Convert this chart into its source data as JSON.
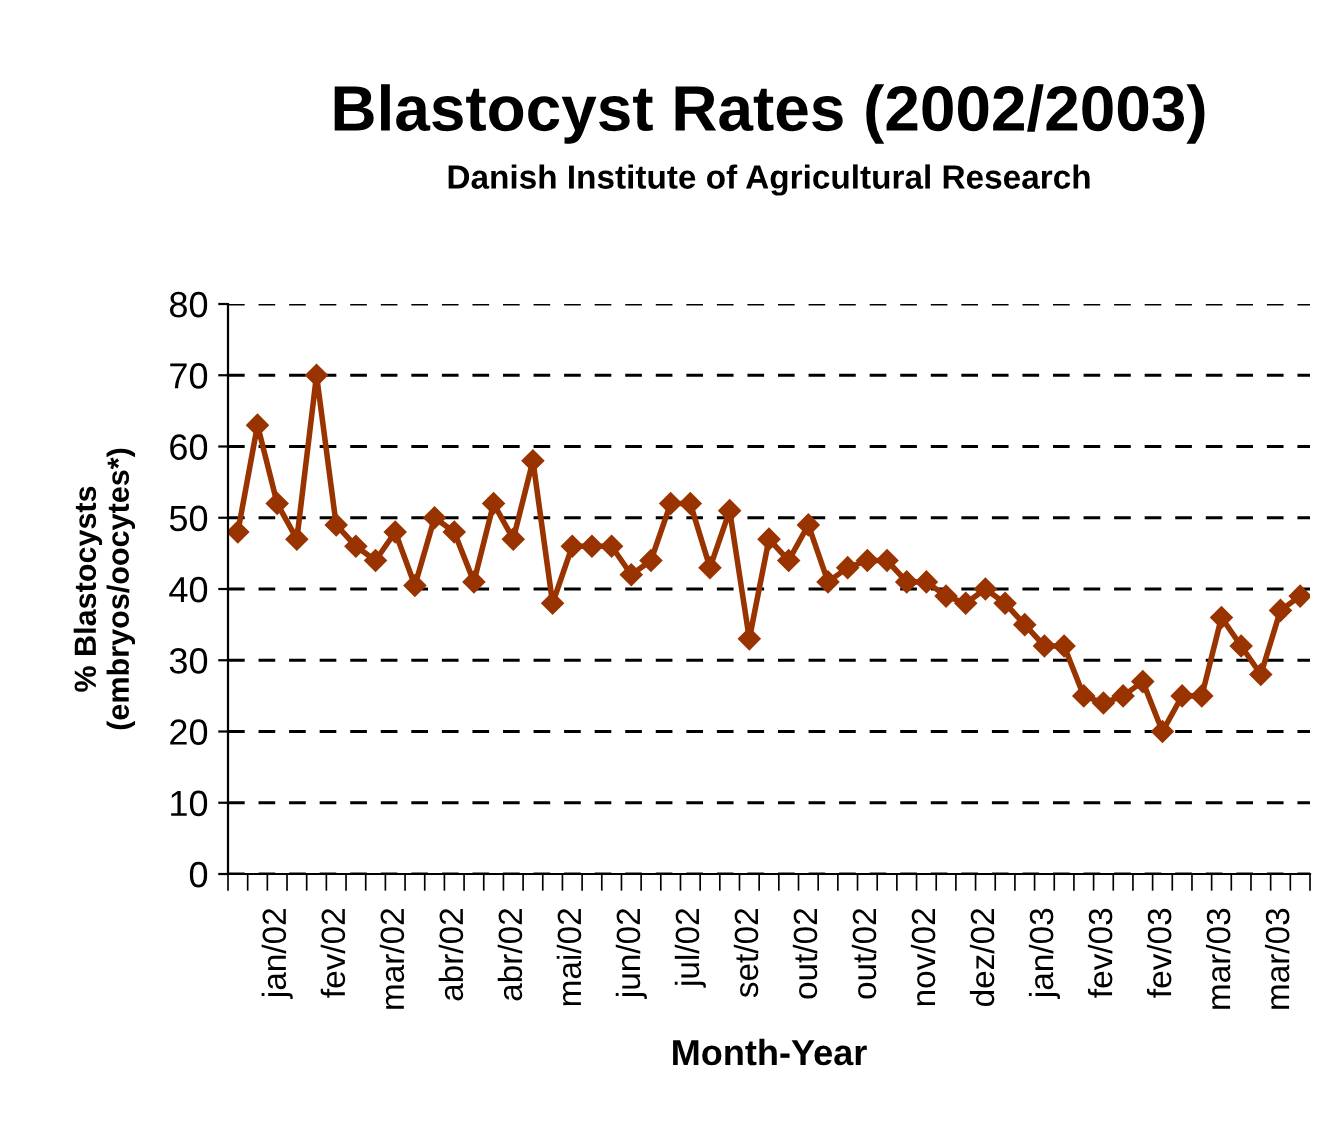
{
  "chart_data": {
    "type": "line",
    "title": "Blastocyst Rates (2002/2003)",
    "subtitle": "Danish Institute of Agricultural Research",
    "xlabel": "Month-Year",
    "ylabel": "% Blastocysts\n(embryos/oocytes*)",
    "categories": [
      null,
      null,
      "jan/02",
      null,
      null,
      "fev/02",
      null,
      null,
      "mar/02",
      null,
      null,
      "abr/02",
      null,
      null,
      "abr/02",
      null,
      null,
      "mai/02",
      null,
      null,
      "jun/02",
      null,
      null,
      "jul/02",
      null,
      null,
      "set/02",
      null,
      null,
      "out/02",
      null,
      null,
      "out/02",
      null,
      null,
      "nov/02",
      null,
      null,
      "dez/02",
      null,
      null,
      "jan/03",
      null,
      null,
      "fev/03",
      null,
      null,
      "fev/03",
      null,
      null,
      "mar/03",
      null,
      null,
      "mar/03",
      null
    ],
    "series": [
      {
        "color": "#993300",
        "values": [
          48,
          63,
          52,
          47,
          70,
          49,
          46,
          44,
          48,
          40.5,
          50,
          48,
          41,
          52,
          47,
          58,
          38,
          46,
          46,
          46,
          42,
          44,
          52,
          52,
          43,
          51,
          33,
          47,
          44,
          49,
          41,
          43,
          44,
          44,
          41,
          41,
          39,
          38,
          40,
          38,
          35,
          32,
          32,
          25,
          24,
          25,
          27,
          20,
          25,
          25,
          36,
          32,
          28,
          37,
          39
        ]
      }
    ],
    "ylim": [
      0,
      80
    ],
    "yticks": [
      0,
      10,
      20,
      30,
      40,
      50,
      60,
      70,
      80
    ],
    "grid": "y",
    "marker": "diamond",
    "line_style": "solid"
  }
}
